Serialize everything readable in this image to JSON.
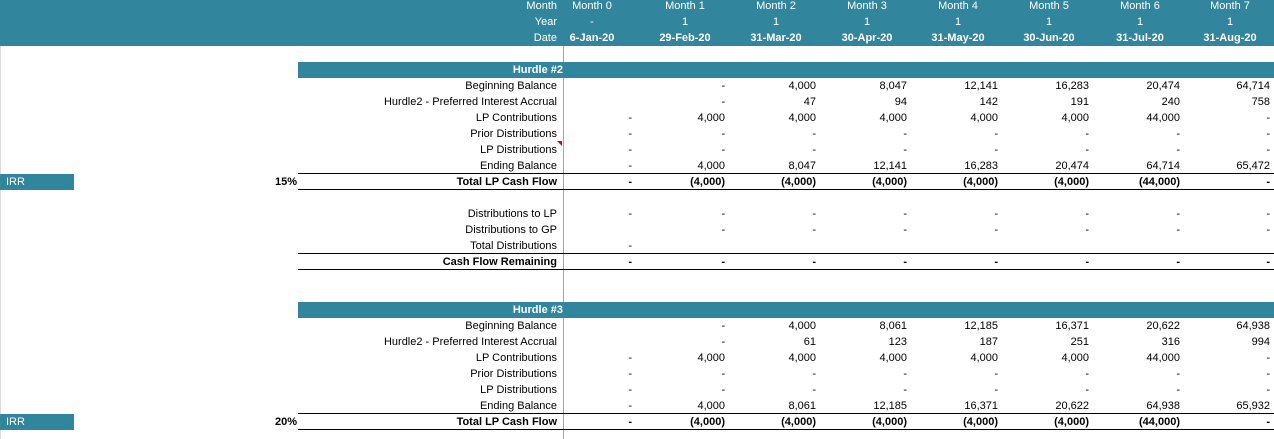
{
  "header": {
    "row_labels": [
      "Month",
      "Year",
      "Date"
    ],
    "columns": [
      {
        "month": "Month 0",
        "year": "-",
        "date": "6-Jan-20"
      },
      {
        "month": "Month 1",
        "year": "1",
        "date": "29-Feb-20"
      },
      {
        "month": "Month 2",
        "year": "1",
        "date": "31-Mar-20"
      },
      {
        "month": "Month 3",
        "year": "1",
        "date": "30-Apr-20"
      },
      {
        "month": "Month 4",
        "year": "1",
        "date": "31-May-20"
      },
      {
        "month": "Month 5",
        "year": "1",
        "date": "30-Jun-20"
      },
      {
        "month": "Month 6",
        "year": "1",
        "date": "31-Jul-20"
      },
      {
        "month": "Month 7",
        "year": "1",
        "date": "31-Aug-20"
      }
    ]
  },
  "hurdle2": {
    "title": "Hurdle #2",
    "irr_label": "IRR",
    "irr_value": "15%",
    "rows": [
      {
        "label": "Beginning Balance",
        "bold": false,
        "values": [
          "",
          "-",
          "4,000",
          "8,047",
          "12,141",
          "16,283",
          "20,474",
          "64,714"
        ]
      },
      {
        "label": "Hurdle2 - Preferred Interest Accrual",
        "bold": false,
        "values": [
          "",
          "-",
          "47",
          "94",
          "142",
          "191",
          "240",
          "758"
        ]
      },
      {
        "label": "LP Contributions",
        "bold": false,
        "values": [
          "-",
          "4,000",
          "4,000",
          "4,000",
          "4,000",
          "4,000",
          "44,000",
          "-"
        ]
      },
      {
        "label": "Prior Distributions",
        "bold": false,
        "values": [
          "-",
          "-",
          "-",
          "-",
          "-",
          "-",
          "-",
          "-"
        ]
      },
      {
        "label": "LP Distributions",
        "bold": false,
        "values": [
          "-",
          "-",
          "-",
          "-",
          "-",
          "-",
          "-",
          "-"
        ]
      },
      {
        "label": "Ending Balance",
        "bold": false,
        "values": [
          "-",
          "4,000",
          "8,047",
          "12,141",
          "16,283",
          "20,474",
          "64,714",
          "65,472"
        ]
      },
      {
        "label": "Total LP Cash Flow",
        "bold": true,
        "values": [
          "-",
          "(4,000)",
          "(4,000)",
          "(4,000)",
          "(4,000)",
          "(4,000)",
          "(44,000)",
          "-"
        ]
      }
    ],
    "distribution_rows": [
      {
        "label": "Distributions to LP",
        "bold": false,
        "values": [
          "-",
          "-",
          "-",
          "-",
          "-",
          "-",
          "-",
          "-"
        ]
      },
      {
        "label": "Distributions to GP",
        "bold": false,
        "values": [
          "",
          "-",
          "-",
          "-",
          "-",
          "-",
          "-",
          "-"
        ]
      },
      {
        "label": "Total Distributions",
        "bold": false,
        "values": [
          "-",
          "",
          "",
          "",
          "",
          "",
          "",
          ""
        ]
      },
      {
        "label": "Cash Flow Remaining",
        "bold": true,
        "values": [
          "-",
          "-",
          "-",
          "-",
          "-",
          "-",
          "-",
          "-"
        ]
      }
    ]
  },
  "hurdle3": {
    "title": "Hurdle #3",
    "irr_label": "IRR",
    "irr_value": "20%",
    "rows": [
      {
        "label": "Beginning Balance",
        "bold": false,
        "values": [
          "",
          "-",
          "4,000",
          "8,061",
          "12,185",
          "16,371",
          "20,622",
          "64,938"
        ]
      },
      {
        "label": "Hurdle2 - Preferred Interest Accrual",
        "bold": false,
        "values": [
          "",
          "-",
          "61",
          "123",
          "187",
          "251",
          "316",
          "994"
        ]
      },
      {
        "label": "LP Contributions",
        "bold": false,
        "values": [
          "-",
          "4,000",
          "4,000",
          "4,000",
          "4,000",
          "4,000",
          "44,000",
          "-"
        ]
      },
      {
        "label": "Prior Distributions",
        "bold": false,
        "values": [
          "-",
          "-",
          "-",
          "-",
          "-",
          "-",
          "-",
          "-"
        ]
      },
      {
        "label": "LP Distributions",
        "bold": false,
        "values": [
          "-",
          "-",
          "-",
          "-",
          "-",
          "-",
          "-",
          "-"
        ]
      },
      {
        "label": "Ending Balance",
        "bold": false,
        "values": [
          "-",
          "4,000",
          "8,061",
          "12,185",
          "16,371",
          "20,622",
          "64,938",
          "65,932"
        ]
      },
      {
        "label": "Total LP Cash Flow",
        "bold": true,
        "values": [
          "-",
          "(4,000)",
          "(4,000)",
          "(4,000)",
          "(4,000)",
          "(4,000)",
          "(44,000)",
          "-"
        ]
      }
    ]
  },
  "colors": {
    "header_bg": "#31859c",
    "comment_marker": "#e00000"
  }
}
